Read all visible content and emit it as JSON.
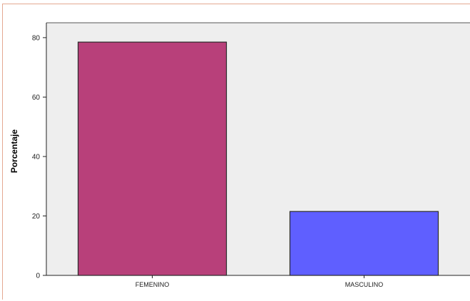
{
  "chart_data": {
    "type": "bar",
    "categories": [
      "FEMENINO",
      "MASCULINO"
    ],
    "values": [
      78.5,
      21.5
    ],
    "colors": [
      "#b8407a",
      "#5f5fff"
    ],
    "ylabel": "Porcentaje",
    "xlabel": "",
    "ylim": [
      0,
      85
    ],
    "yticks": [
      "0",
      "20",
      "40",
      "60",
      "80"
    ],
    "grid": false,
    "plot_background": "#eeeeee"
  }
}
